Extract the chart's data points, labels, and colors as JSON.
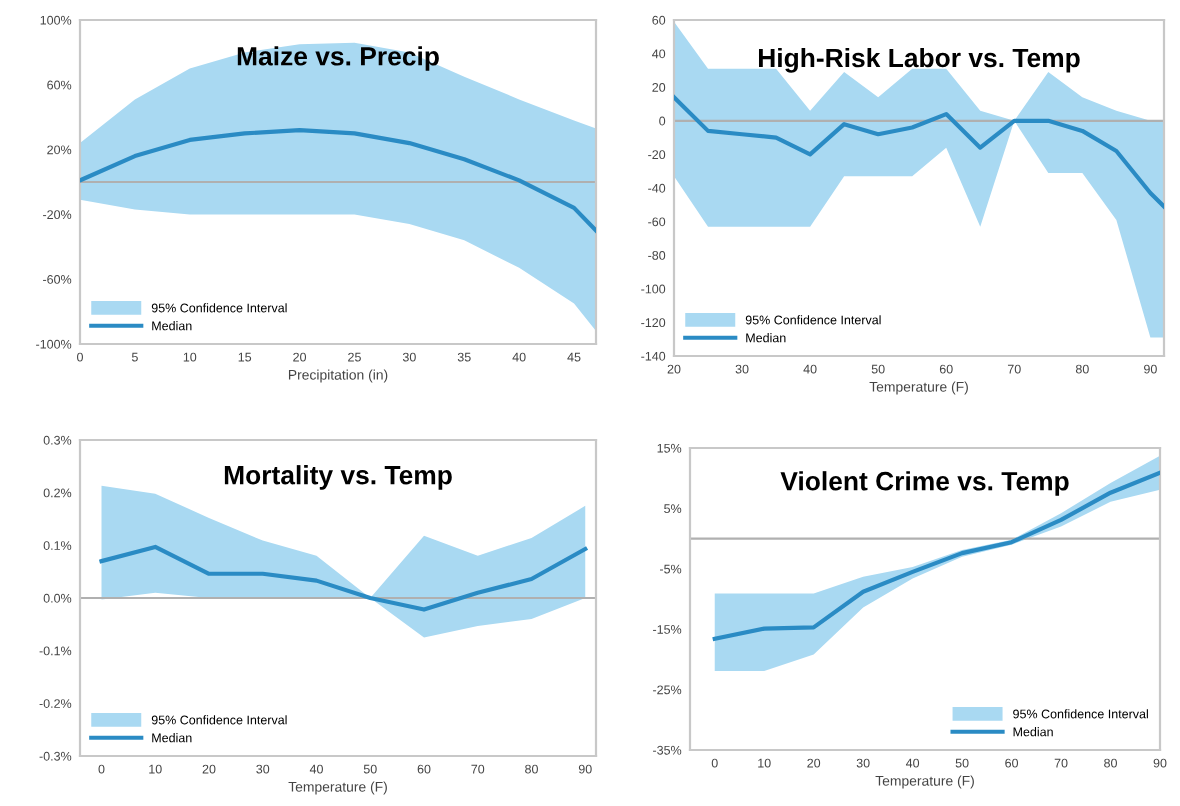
{
  "chart_data": [
    {
      "type": "line",
      "title": "Maize vs. Precip",
      "xlabel": "Precipitation (in)",
      "annotations": [
        "95% Confidence Interval"
      ],
      "x": [
        0,
        5,
        10,
        15,
        20,
        25,
        30,
        35,
        40,
        45,
        47
      ],
      "xlim": [
        0,
        47
      ],
      "xticks": [
        0,
        5,
        10,
        15,
        20,
        25,
        30,
        35,
        40,
        45
      ],
      "ylim": [
        -100,
        100
      ],
      "yticks": [
        {
          "value": 100,
          "label": "100%"
        },
        {
          "value": 60,
          "label": "60%"
        },
        {
          "value": 20,
          "label": "20%"
        },
        {
          "value": -20,
          "label": "-20%"
        },
        {
          "value": -60,
          "label": "-60%"
        },
        {
          "value": -100,
          "label": "-100%"
        }
      ],
      "legend": "bottom left",
      "ref_lines": [
        {
          "axis": "y",
          "value": 0,
          "color": "#b0b0b0"
        }
      ],
      "series": [
        {
          "name": "Median",
          "color": "#2a8bc4",
          "values": [
            1,
            16,
            26,
            30,
            32,
            30,
            24,
            14,
            1,
            -16,
            -30
          ],
          "lower": [
            -11,
            -17,
            -20,
            -20,
            -20,
            -20,
            -26,
            -36,
            -53,
            -75,
            -92
          ],
          "upper": [
            24,
            51,
            70,
            80,
            85,
            86,
            80,
            65,
            51,
            38,
            33
          ]
        }
      ]
    },
    {
      "type": "line",
      "title": "High-Risk Labor vs. Temp",
      "xlabel": "Temperature (F)",
      "annotations": [
        "95% Confidence Interval"
      ],
      "x": [
        20,
        25,
        30,
        35,
        40,
        45,
        50,
        55,
        60,
        65,
        70,
        75,
        80,
        85,
        90,
        92
      ],
      "xlim": [
        20,
        92
      ],
      "xticks": [
        20,
        30,
        40,
        50,
        60,
        70,
        80,
        90
      ],
      "ylim": [
        -140,
        60
      ],
      "yticks": [
        60,
        40,
        20,
        0,
        -20,
        -40,
        -60,
        -80,
        -100,
        -120,
        -140
      ],
      "legend": "bottom left",
      "ref_lines": [
        {
          "axis": "y",
          "value": 0,
          "color": "#b0b0b0"
        }
      ],
      "series": [
        {
          "name": "Median",
          "color": "#2a8bc4",
          "values": [
            14,
            -6,
            -8,
            -10,
            -20,
            -2,
            -8,
            -4,
            4,
            -16,
            0,
            0,
            -6,
            -18,
            -43,
            -51
          ],
          "lower": [
            -33,
            -63,
            -63,
            -63,
            -63,
            -33,
            -33,
            -33,
            -16,
            -63,
            0,
            -31,
            -31,
            -59,
            -129,
            -129
          ],
          "upper": [
            59,
            31,
            31,
            31,
            6,
            29,
            14,
            31,
            31,
            6,
            0,
            29,
            14,
            6,
            0,
            0
          ]
        }
      ]
    },
    {
      "type": "line",
      "title": "Mortality vs. Temp",
      "xlabel": "Temperature (F)",
      "annotations": [
        "95% Confidence Interval"
      ],
      "x": [
        0,
        10,
        20,
        30,
        40,
        50,
        60,
        70,
        80,
        90
      ],
      "xlim": [
        -4,
        92
      ],
      "xticks": [
        0,
        10,
        20,
        30,
        40,
        50,
        60,
        70,
        80,
        90
      ],
      "ylim": [
        -0.3,
        0.3
      ],
      "yticks": [
        {
          "value": 0.3,
          "label": "0.3%"
        },
        {
          "value": 0.2,
          "label": "0.2%"
        },
        {
          "value": 0.1,
          "label": "0.1%"
        },
        {
          "value": 0.0,
          "label": "0.0%"
        },
        {
          "value": -0.1,
          "label": "-0.1%"
        },
        {
          "value": -0.2,
          "label": "-0.2%"
        },
        {
          "value": -0.3,
          "label": "-0.3%"
        }
      ],
      "legend": "bottom left",
      "ref_lines": [
        {
          "axis": "y",
          "value": 0,
          "color": "#b0b0b0"
        }
      ],
      "series": [
        {
          "name": "Median",
          "color": "#2a8bc4",
          "values": [
            0.07,
            0.097,
            0.046,
            0.046,
            0.033,
            0.0,
            -0.022,
            0.01,
            0.036,
            0.093
          ],
          "lower": [
            -0.003,
            0.01,
            0.0,
            0.0,
            0.0,
            0.0,
            -0.075,
            -0.053,
            -0.04,
            0.0
          ],
          "upper": [
            0.213,
            0.198,
            0.152,
            0.109,
            0.08,
            0.0,
            0.118,
            0.08,
            0.114,
            0.175
          ]
        }
      ]
    },
    {
      "type": "line",
      "title": "Violent Crime vs. Temp",
      "xlabel": "Temperature (F)",
      "annotations": [
        "95% Confidence Interval"
      ],
      "x": [
        0,
        10,
        20,
        30,
        40,
        50,
        60,
        70,
        80,
        90
      ],
      "xlim": [
        -5,
        90
      ],
      "xticks": [
        0,
        10,
        20,
        30,
        40,
        50,
        60,
        70,
        80,
        90
      ],
      "ylim": [
        -35,
        15
      ],
      "yticks": [
        {
          "value": 15,
          "label": "15%"
        },
        {
          "value": 5,
          "label": "5%"
        },
        {
          "value": -5,
          "label": "-5%"
        },
        {
          "value": -15,
          "label": "-15%"
        },
        {
          "value": -25,
          "label": "-25%"
        },
        {
          "value": -35,
          "label": "-35%"
        }
      ],
      "legend": "bottom right",
      "ref_lines": [
        {
          "axis": "y",
          "value": 0,
          "color": "#b0b0b0"
        }
      ],
      "series": [
        {
          "name": "Median",
          "color": "#2a8bc4",
          "values": [
            -16.6,
            -14.9,
            -14.7,
            -8.8,
            -5.5,
            -2.4,
            -0.6,
            3.1,
            7.6,
            10.9
          ],
          "lower": [
            -21.9,
            -21.9,
            -19.2,
            -11.4,
            -6.6,
            -3.0,
            -1.0,
            2.0,
            6.1,
            8.1
          ],
          "upper": [
            -9.1,
            -9.1,
            -9.1,
            -6.3,
            -4.7,
            -1.9,
            -0.2,
            4.2,
            9.2,
            13.7
          ]
        }
      ]
    }
  ]
}
